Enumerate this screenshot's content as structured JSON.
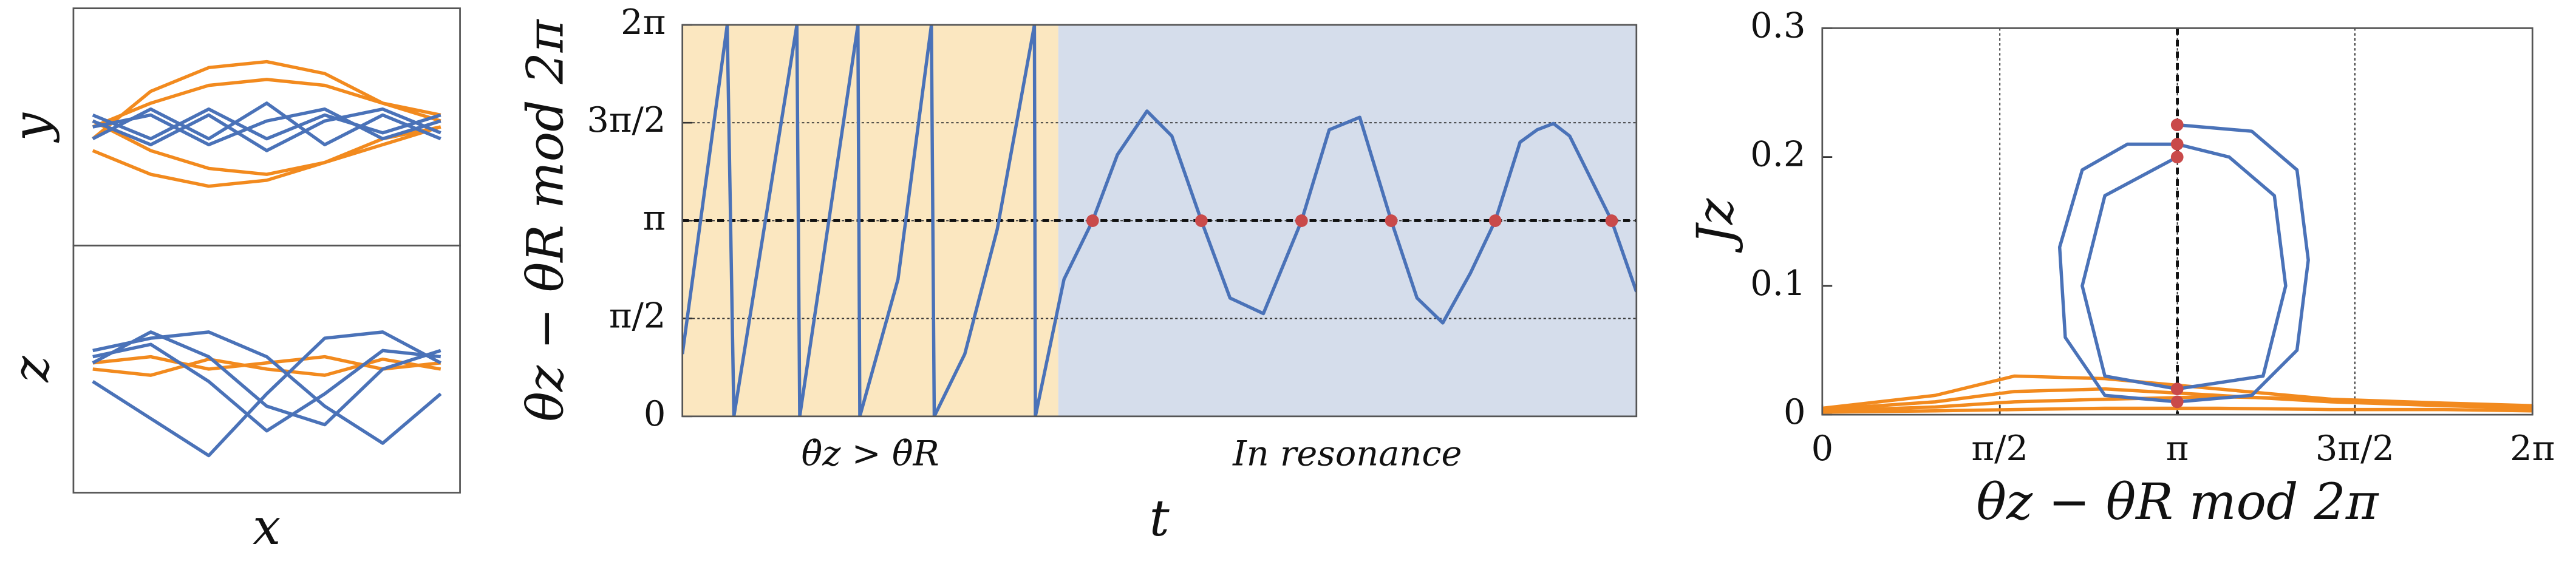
{
  "chart_data": [
    {
      "type": "line",
      "ylabel": "y",
      "xlim": [
        -1,
        1
      ],
      "ylim": [
        -1,
        1
      ],
      "series": [
        {
          "color": "#f28a1e",
          "x": [
            -0.9,
            -0.6,
            -0.3,
            0,
            0.3,
            0.6,
            0.9
          ],
          "values": [
            -0.1,
            0.3,
            0.5,
            0.55,
            0.45,
            0.2,
            0.1
          ]
        },
        {
          "color": "#f28a1e",
          "x": [
            -0.9,
            -0.6,
            -0.3,
            0,
            0.3,
            0.6,
            0.9
          ],
          "values": [
            -0.2,
            -0.4,
            -0.5,
            -0.45,
            -0.3,
            -0.1,
            0.0
          ]
        },
        {
          "color": "#f28a1e",
          "x": [
            -0.9,
            -0.6,
            -0.3,
            0,
            0.3,
            0.6,
            0.9
          ],
          "values": [
            0.0,
            0.2,
            0.35,
            0.4,
            0.35,
            0.2,
            0.05
          ]
        },
        {
          "color": "#f28a1e",
          "x": [
            -0.9,
            -0.6,
            -0.3,
            0,
            0.3,
            0.6,
            0.9
          ],
          "values": [
            0.05,
            -0.2,
            -0.35,
            -0.4,
            -0.3,
            -0.15,
            0.0
          ]
        },
        {
          "color": "#4a72b8",
          "x": [
            -0.9,
            -0.6,
            -0.3,
            0,
            0.3,
            0.6,
            0.9
          ],
          "values": [
            0.1,
            -0.1,
            0.15,
            -0.1,
            0.1,
            -0.05,
            0.1
          ]
        },
        {
          "color": "#4a72b8",
          "x": [
            -0.9,
            -0.6,
            -0.3,
            0,
            0.3,
            0.6,
            0.9
          ],
          "values": [
            -0.1,
            0.15,
            -0.1,
            0.2,
            -0.15,
            0.1,
            -0.1
          ]
        },
        {
          "color": "#4a72b8",
          "x": [
            -0.9,
            -0.6,
            -0.3,
            0,
            0.3,
            0.6,
            0.9
          ],
          "values": [
            0.0,
            0.1,
            -0.15,
            0.05,
            0.15,
            -0.1,
            0.05
          ]
        },
        {
          "color": "#4a72b8",
          "x": [
            -0.9,
            -0.6,
            -0.3,
            0,
            0.3,
            0.6,
            0.9
          ],
          "values": [
            0.05,
            -0.15,
            0.1,
            -0.2,
            0.05,
            0.15,
            -0.05
          ]
        }
      ]
    },
    {
      "type": "line",
      "ylabel": "z",
      "xlabel": "x",
      "xlim": [
        -1,
        1
      ],
      "ylim": [
        -1,
        1
      ],
      "series": [
        {
          "color": "#f28a1e",
          "x": [
            -0.9,
            -0.6,
            -0.3,
            0,
            0.3,
            0.6,
            0.9
          ],
          "values": [
            0.05,
            0.1,
            0.0,
            0.05,
            0.1,
            0.0,
            0.05
          ]
        },
        {
          "color": "#f28a1e",
          "x": [
            -0.9,
            -0.6,
            -0.3,
            0,
            0.3,
            0.6,
            0.9
          ],
          "values": [
            0.0,
            -0.05,
            0.08,
            0.0,
            -0.05,
            0.08,
            0.0
          ]
        },
        {
          "color": "#4a72b8",
          "x": [
            -0.9,
            -0.6,
            -0.3,
            0,
            0.3,
            0.6,
            0.9
          ],
          "values": [
            0.1,
            0.2,
            -0.1,
            -0.5,
            -0.2,
            0.15,
            0.1
          ]
        },
        {
          "color": "#4a72b8",
          "x": [
            -0.9,
            -0.6,
            -0.3,
            0,
            0.3,
            0.6,
            0.9
          ],
          "values": [
            0.05,
            0.3,
            0.1,
            -0.3,
            -0.45,
            0.0,
            0.15
          ]
        },
        {
          "color": "#4a72b8",
          "x": [
            -0.9,
            -0.6,
            -0.3,
            0,
            0.3,
            0.6,
            0.9
          ],
          "values": [
            -0.1,
            -0.4,
            -0.7,
            -0.2,
            0.25,
            0.3,
            0.05
          ]
        },
        {
          "color": "#4a72b8",
          "x": [
            -0.9,
            -0.6,
            -0.3,
            0,
            0.3,
            0.6,
            0.9
          ],
          "values": [
            0.15,
            0.25,
            0.3,
            0.1,
            -0.3,
            -0.6,
            -0.2
          ]
        }
      ]
    },
    {
      "type": "line",
      "xlabel": "t",
      "ylabel": "θz − θR mod 2π",
      "xlim": [
        0,
        1
      ],
      "ylim": [
        0,
        6.2832
      ],
      "yticks": [
        0,
        {
          "value": 1.5708,
          "label": "π/2"
        },
        {
          "value": 3.1416,
          "label": "π"
        },
        {
          "value": 4.7124,
          "label": "3π/2"
        },
        {
          "value": 6.2832,
          "label": "2π"
        }
      ],
      "grid": "y",
      "reference_lines": [
        {
          "axis": "y",
          "value": 3.1416
        }
      ],
      "regions": [
        {
          "label": "θ̇z > θ̇R",
          "from": 0,
          "to": 0.394,
          "color": "#fbe7c0"
        },
        {
          "label": "In resonance",
          "from": 0.394,
          "to": 1,
          "color": "#d5ddeb"
        }
      ],
      "series": [
        {
          "color": "#4a72b8",
          "style": "line",
          "x": [
            0,
            0.047,
            0.054,
            0.12,
            0.123,
            0.184,
            0.186,
            0.226,
            0.261,
            0.264,
            0.296,
            0.33,
            0.369,
            0.37,
            0.4,
            0.43,
            0.456,
            0.487,
            0.513,
            0.544,
            0.574,
            0.609,
            0.649,
            0.678,
            0.71,
            0.743,
            0.77,
            0.797,
            0.826,
            0.852,
            0.878,
            0.896,
            0.913,
            0.93,
            0.974,
            1.0
          ],
          "values": [
            1.0,
            6.28,
            0,
            6.28,
            0,
            6.28,
            0,
            2.2,
            6.28,
            0,
            1.0,
            3.0,
            6.28,
            0,
            2.2,
            3.14,
            4.2,
            4.9,
            4.5,
            3.14,
            1.9,
            1.65,
            3.14,
            4.6,
            4.8,
            3.14,
            1.9,
            1.5,
            2.3,
            3.14,
            4.4,
            4.6,
            4.7,
            4.5,
            3.14,
            2.0
          ]
        },
        {
          "color": "#c94a4a",
          "style": "dots",
          "x": [
            0.43,
            0.544,
            0.649,
            0.743,
            0.852,
            0.974
          ],
          "values": [
            3.14,
            3.14,
            3.14,
            3.14,
            3.14,
            3.14
          ]
        }
      ]
    },
    {
      "type": "line",
      "xlabel": "θz − θR mod 2π",
      "ylabel": "Jz",
      "xlim": [
        0,
        6.2832
      ],
      "ylim": [
        0,
        0.3
      ],
      "xticks": [
        0,
        {
          "value": 1.5708,
          "label": "π/2"
        },
        {
          "value": 3.1416,
          "label": "π"
        },
        {
          "value": 4.7124,
          "label": "3π/2"
        },
        {
          "value": 6.2832,
          "label": "2π"
        }
      ],
      "yticks": [
        0,
        0.1,
        0.2,
        0.3
      ],
      "grid": "x",
      "reference_lines": [
        {
          "axis": "x",
          "value": 3.1416
        }
      ],
      "series": [
        {
          "color": "#f28a1e",
          "style": "line",
          "x": [
            0,
            1,
            1.7,
            2.5,
            3.5,
            4.5,
            5.5,
            6.28
          ],
          "values": [
            0.005,
            0.015,
            0.03,
            0.028,
            0.02,
            0.012,
            0.008,
            0.006
          ]
        },
        {
          "color": "#f28a1e",
          "style": "line",
          "x": [
            0,
            1,
            1.7,
            2.5,
            3.5,
            4.5,
            5.5,
            6.28
          ],
          "values": [
            0.004,
            0.01,
            0.018,
            0.02,
            0.015,
            0.01,
            0.007,
            0.005
          ]
        },
        {
          "color": "#f28a1e",
          "style": "line",
          "x": [
            0,
            1,
            1.7,
            2.5,
            3.5,
            4.5,
            5.5,
            6.28
          ],
          "values": [
            0.003,
            0.006,
            0.01,
            0.012,
            0.014,
            0.012,
            0.009,
            0.007
          ]
        },
        {
          "color": "#f28a1e",
          "style": "line",
          "x": [
            0,
            1,
            1.7,
            2.5,
            3.5,
            4.5,
            5.5,
            6.28
          ],
          "values": [
            0.002,
            0.003,
            0.004,
            0.005,
            0.005,
            0.004,
            0.004,
            0.003
          ]
        },
        {
          "color": "#4a72b8",
          "style": "line",
          "x": [
            3.14,
            3.8,
            4.2,
            4.3,
            4.2,
            3.8,
            3.14,
            2.5,
            2.15,
            2.1,
            2.3,
            2.7,
            3.14,
            3.6,
            4.0,
            4.1,
            3.9,
            3.14,
            2.5,
            2.3,
            2.5,
            3.14
          ],
          "values": [
            0.225,
            0.22,
            0.19,
            0.12,
            0.05,
            0.015,
            0.01,
            0.015,
            0.06,
            0.13,
            0.19,
            0.21,
            0.21,
            0.2,
            0.17,
            0.1,
            0.03,
            0.02,
            0.03,
            0.1,
            0.17,
            0.2
          ]
        },
        {
          "color": "#c94a4a",
          "style": "dots",
          "x": [
            3.14,
            3.14,
            3.14,
            3.14,
            3.14
          ],
          "values": [
            0.225,
            0.21,
            0.2,
            0.02,
            0.01
          ]
        }
      ]
    }
  ]
}
